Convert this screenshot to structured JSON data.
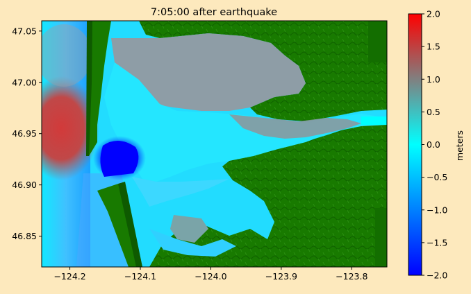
{
  "chart_data": {
    "type": "heatmap",
    "title": "7:05:00 after earthquake",
    "xlabel": "",
    "ylabel": "",
    "xlim": [
      -124.24,
      -123.75
    ],
    "ylim": [
      46.82,
      47.06
    ],
    "xticks": [
      -124.2,
      -124.1,
      -124.0,
      -123.9,
      -123.8
    ],
    "xtick_labels": [
      "−124.2",
      "−124.1",
      "−124.0",
      "−123.9",
      "−123.8"
    ],
    "yticks": [
      46.85,
      46.9,
      46.95,
      47.0,
      47.05
    ],
    "ytick_labels": [
      "46.85",
      "46.90",
      "46.95",
      "47.00",
      "47.05"
    ],
    "grid": false,
    "colorbar": {
      "label": "meters",
      "range": [
        -2.0,
        2.0
      ],
      "ticks": [
        -2.0,
        -1.5,
        -1.0,
        -0.5,
        0.0,
        0.5,
        1.0,
        1.5,
        2.0
      ],
      "tick_labels": [
        "−2.0",
        "−1.5",
        "−1.0",
        "−0.5",
        "0.0",
        "0.5",
        "1.0",
        "1.5",
        "2.0"
      ],
      "colors": [
        "#0000ff",
        "#00ffff",
        "#808080",
        "#ff0000"
      ]
    },
    "land_color": "#187a00",
    "land_dark_color": "#0e5a00"
  }
}
